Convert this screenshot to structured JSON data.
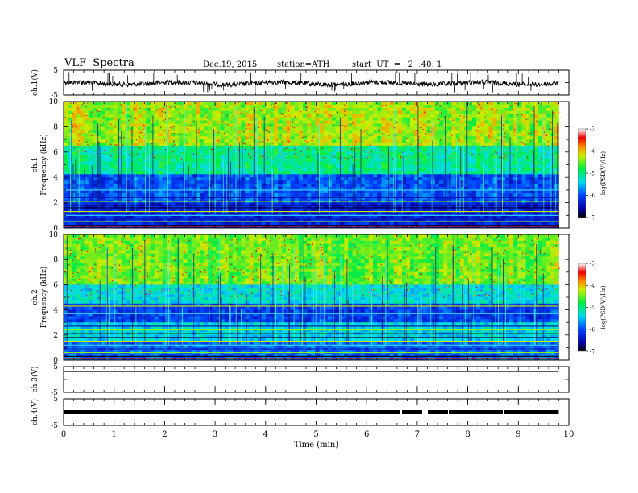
{
  "header": {
    "title": "VLF  Spectra",
    "date": "Dec.19, 2015",
    "station": "station=ATH",
    "start": "start  UT  =   2  :40: 1"
  },
  "chart_data": [
    {
      "type": "line",
      "name": "ch1-waveform",
      "ylabel": "ch.1(V)",
      "ylim": [
        -5,
        5
      ],
      "yticks": [
        "5",
        "-5"
      ],
      "xlim": [
        0,
        10
      ]
    },
    {
      "type": "heatmap",
      "name": "ch1-spectrogram",
      "ylabel": "ch.1\nFrequency (kHz)",
      "ylabel_line1": "ch.1",
      "ylabel_line2": "Frequency (kHz)",
      "ylim": [
        0,
        10
      ],
      "yticks": [
        "0",
        "2",
        "4",
        "6",
        "8",
        "10"
      ],
      "xlim": [
        0,
        9.8
      ],
      "colorbar": {
        "label": "log(PSD(V²/Hz)",
        "range": [
          -7,
          -3
        ],
        "ticks": [
          "-3",
          "-4",
          "-5",
          "-6",
          "-7"
        ]
      }
    },
    {
      "type": "heatmap",
      "name": "ch2-spectrogram",
      "ylabel_line1": "ch.2",
      "ylabel_line2": "Frequency (kHz)",
      "ylim": [
        0,
        10
      ],
      "yticks": [
        "0",
        "2",
        "4",
        "6",
        "8",
        "10"
      ],
      "xlim": [
        0,
        9.8
      ],
      "colorbar": {
        "label": "log(PSD(V²/Hz)",
        "range": [
          -7,
          -3
        ],
        "ticks": [
          "-3",
          "-4",
          "-5",
          "-6",
          "-7"
        ]
      }
    },
    {
      "type": "line",
      "name": "ch3-waveform",
      "ylabel": "ch.3(V)",
      "ylim": [
        -5,
        5
      ],
      "yticks": [
        "5",
        "-5"
      ]
    },
    {
      "type": "line",
      "name": "ch4-waveform",
      "ylabel": "ch.4(V)",
      "ylim": [
        -5,
        5
      ],
      "yticks": [
        "5",
        "-5"
      ],
      "xlabel": "Time (min)",
      "xlim": [
        0,
        10
      ],
      "xticks": [
        "0",
        "1",
        "2",
        "3",
        "4",
        "5",
        "6",
        "7",
        "8",
        "9",
        "10"
      ]
    }
  ]
}
